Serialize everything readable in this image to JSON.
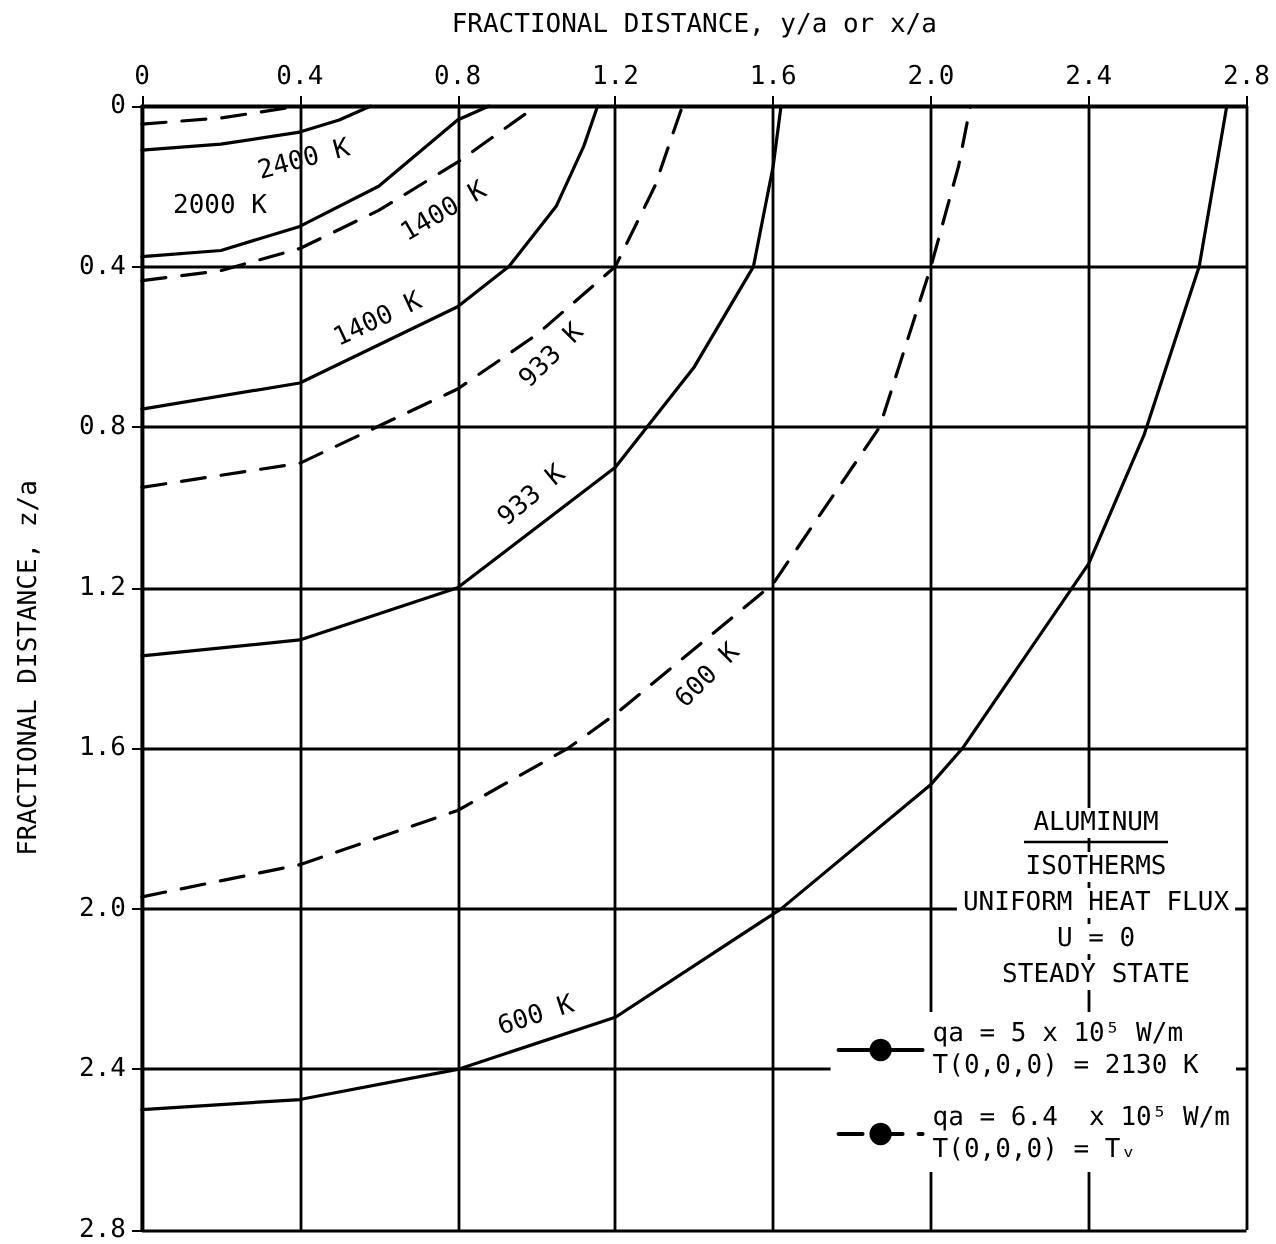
{
  "chart_data": {
    "type": "line",
    "xlabel": "FRACTIONAL DISTANCE, y/a or x/a",
    "ylabel": "FRACTIONAL DISTANCE, z/a",
    "legend_title": "ALUMINUM",
    "xlim": [
      0,
      2.8
    ],
    "ylim": [
      2.8,
      0
    ],
    "xticks": [
      0,
      0.4,
      0.8,
      1.2,
      1.6,
      {
        "value": 2,
        "label": "2.0"
      },
      2.4,
      2.8
    ],
    "yticks": [
      0,
      0.4,
      0.8,
      1.2,
      1.6,
      {
        "value": 2,
        "label": "2.0"
      },
      2.4,
      2.8
    ],
    "grid": true,
    "legend": "bottom right",
    "marker": "none",
    "series": [
      {
        "name": "qa = 5 x 10⁵ W/m\nT(0,0,0) = 2130 K",
        "color": "#000000",
        "line_style": "solid",
        "x": [
          0,
          0.2,
          0.4,
          0.5,
          0.58
        ],
        "values": [
          0.11,
          0.095,
          0.065,
          0.035,
          0
        ]
      },
      {
        "color": "#000000",
        "line_style": "solid",
        "x": [
          0,
          0.2,
          0.4,
          0.6,
          0.8,
          0.88
        ],
        "values": [
          0.375,
          0.36,
          0.3,
          0.2,
          0.035,
          0
        ]
      },
      {
        "color": "#000000",
        "line_style": "solid",
        "x": [
          0,
          0.4,
          0.8,
          0.93,
          1.05,
          1.12,
          1.155
        ],
        "values": [
          0.755,
          0.69,
          0.5,
          0.4,
          0.25,
          0.1,
          0
        ]
      },
      {
        "color": "#000000",
        "line_style": "solid",
        "x": [
          0,
          0.4,
          0.8,
          1.2,
          1.4,
          1.55,
          1.6,
          1.62
        ],
        "values": [
          1.37,
          1.33,
          1.2,
          0.9,
          0.65,
          0.4,
          0.15,
          0
        ]
      },
      {
        "color": "#000000",
        "line_style": "solid",
        "x": [
          0,
          0.4,
          0.8,
          1.2,
          1.62,
          2.0,
          2.08,
          2.4,
          2.54,
          2.68,
          2.75
        ],
        "values": [
          2.5,
          2.475,
          2.4,
          2.27,
          2.0,
          1.69,
          1.6,
          1.14,
          0.82,
          0.4,
          0
        ]
      },
      {
        "name": "qa = 6.4  x 10⁵ W/m\nT(0,0,0) = Tᵥ",
        "color": "#000000",
        "line_style": "dashed",
        "x": [
          0,
          0.2,
          0.4
        ],
        "values": [
          0.045,
          0.03,
          0
        ]
      },
      {
        "color": "#000000",
        "line_style": "dashed",
        "x": [
          0,
          0.2,
          0.4,
          0.6,
          0.8,
          1.0
        ],
        "values": [
          0.435,
          0.41,
          0.355,
          0.26,
          0.14,
          0
        ]
      },
      {
        "color": "#000000",
        "line_style": "dashed",
        "x": [
          0,
          0.4,
          0.8,
          1.0,
          1.2,
          1.3,
          1.37
        ],
        "values": [
          0.95,
          0.89,
          0.705,
          0.57,
          0.4,
          0.2,
          0
        ]
      },
      {
        "color": "#000000",
        "line_style": "dashed",
        "x": [
          0,
          0.4,
          0.8,
          1.08,
          1.2,
          1.6,
          1.87,
          2.0,
          2.07,
          2.1
        ],
        "values": [
          1.97,
          1.89,
          1.755,
          1.6,
          1.515,
          1.19,
          0.8,
          0.4,
          0.15,
          0
        ]
      }
    ],
    "annotations": [
      "2400 K",
      "2000 K",
      "1400 K",
      "1400 K",
      "933 K",
      "933 K",
      "600 K",
      "600 K",
      "ISOTHERMS",
      "UNIFORM HEAT FLUX",
      "U = 0",
      "STEADY STATE"
    ]
  }
}
